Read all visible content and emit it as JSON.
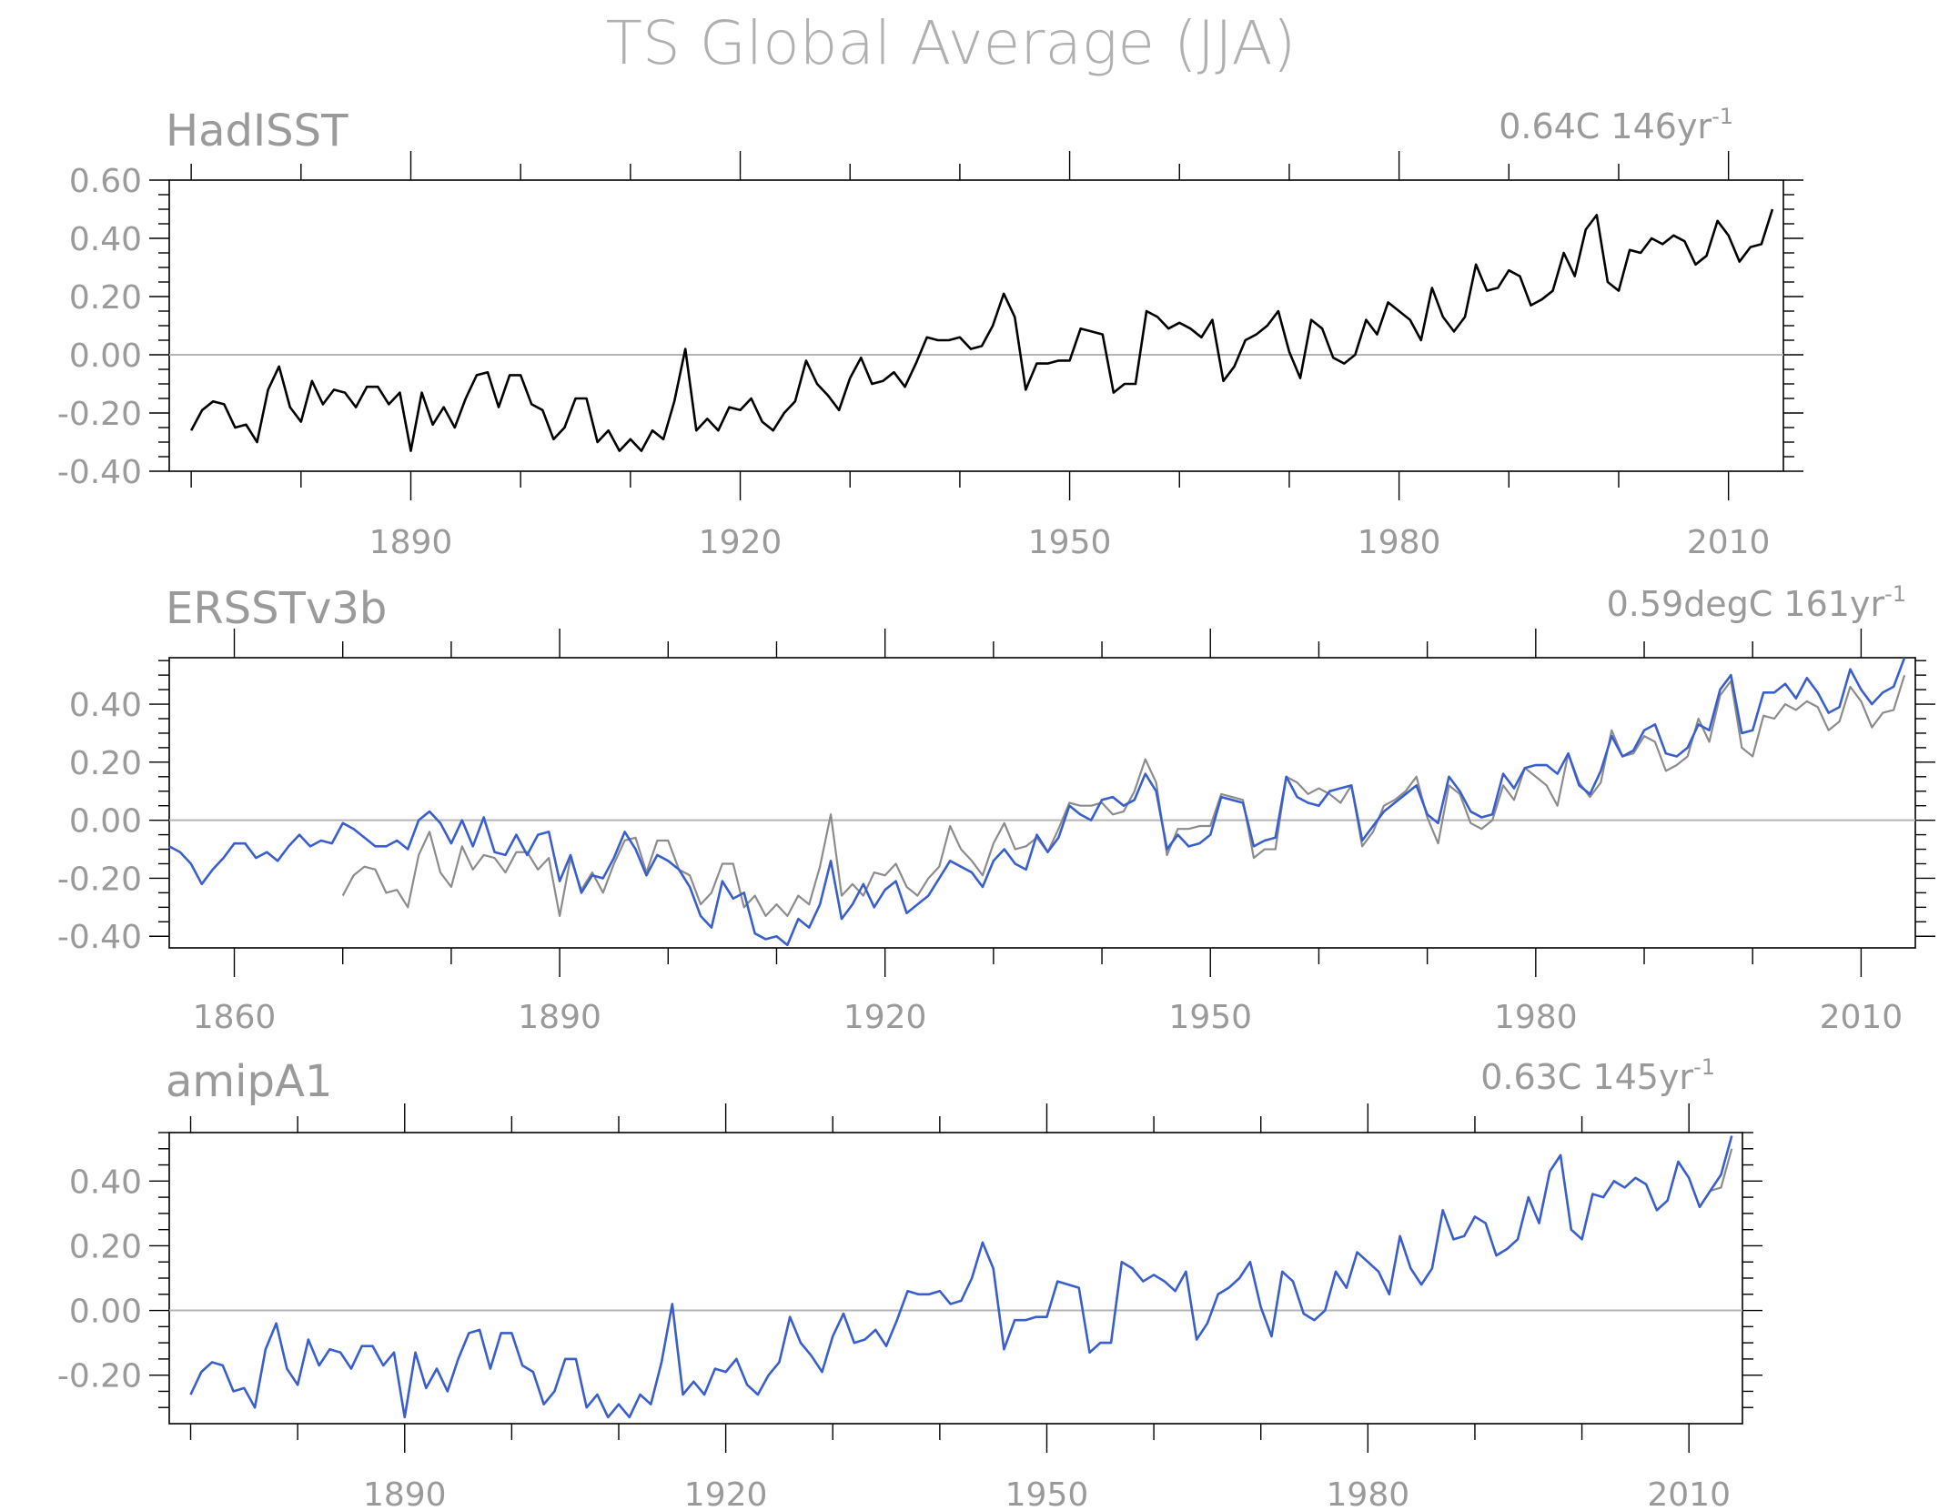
{
  "title": "TS Global Average (JJA)",
  "colors": {
    "observed": "#000000",
    "reference": "#8c8c8c",
    "model": "#3a5fcd",
    "zero_line": "#b4b4b4",
    "text": "#9a9a9a"
  },
  "chart_data": [
    {
      "type": "line",
      "name": "HadISST",
      "trend_label": "0.64C 146yr",
      "trend_exp": "-1",
      "xlim": [
        1868,
        2015
      ],
      "ylim": [
        -0.4,
        0.6
      ],
      "yticks": [
        -0.4,
        -0.2,
        0.0,
        0.2,
        0.4,
        0.6
      ],
      "ytick_labels": [
        "-0.40",
        "-0.20",
        "0.00",
        "0.20",
        "0.40",
        "0.60"
      ],
      "xticks": [
        1890,
        1920,
        1950,
        1980,
        2010
      ],
      "xtick_labels": [
        "1890",
        "1920",
        "1950",
        "1980",
        "2010"
      ],
      "x_start": 1870,
      "series": [
        {
          "role": "observed",
          "values": [
            -0.26,
            -0.19,
            -0.16,
            -0.17,
            -0.25,
            -0.24,
            -0.3,
            -0.12,
            -0.04,
            -0.18,
            -0.23,
            -0.09,
            -0.17,
            -0.12,
            -0.13,
            -0.18,
            -0.11,
            -0.11,
            -0.17,
            -0.13,
            -0.33,
            -0.13,
            -0.24,
            -0.18,
            -0.25,
            -0.15,
            -0.07,
            -0.06,
            -0.18,
            -0.07,
            -0.07,
            -0.17,
            -0.19,
            -0.29,
            -0.25,
            -0.15,
            -0.15,
            -0.3,
            -0.26,
            -0.33,
            -0.29,
            -0.33,
            -0.26,
            -0.29,
            -0.16,
            0.02,
            -0.26,
            -0.22,
            -0.26,
            -0.18,
            -0.19,
            -0.15,
            -0.23,
            -0.26,
            -0.2,
            -0.16,
            -0.02,
            -0.1,
            -0.14,
            -0.19,
            -0.08,
            -0.01,
            -0.1,
            -0.09,
            -0.06,
            -0.11,
            -0.03,
            0.06,
            0.05,
            0.05,
            0.06,
            0.02,
            0.03,
            0.1,
            0.21,
            0.13,
            -0.12,
            -0.03,
            -0.03,
            -0.02,
            -0.02,
            0.09,
            0.08,
            0.07,
            -0.13,
            -0.1,
            -0.1,
            0.15,
            0.13,
            0.09,
            0.11,
            0.09,
            0.06,
            0.12,
            -0.09,
            -0.04,
            0.05,
            0.07,
            0.1,
            0.15,
            0.01,
            -0.08,
            0.12,
            0.09,
            -0.01,
            -0.03,
            0.0,
            0.12,
            0.07,
            0.18,
            0.15,
            0.12,
            0.05,
            0.23,
            0.13,
            0.08,
            0.13,
            0.31,
            0.22,
            0.23,
            0.29,
            0.27,
            0.17,
            0.19,
            0.22,
            0.35,
            0.27,
            0.43,
            0.48,
            0.25,
            0.22,
            0.36,
            0.35,
            0.4,
            0.38,
            0.41,
            0.39,
            0.31,
            0.34,
            0.46,
            0.41,
            0.32,
            0.37,
            0.38,
            0.5
          ]
        }
      ]
    },
    {
      "type": "line",
      "name": "ERSSTv3b",
      "trend_label": "0.59degC 161yr",
      "trend_exp": "-1",
      "xlim": [
        1854,
        2015
      ],
      "ylim": [
        -0.44,
        0.56
      ],
      "yticks": [
        -0.4,
        -0.2,
        0.0,
        0.2,
        0.4
      ],
      "ytick_labels": [
        "-0.40",
        "-0.20",
        "0.00",
        "0.20",
        "0.40"
      ],
      "xticks": [
        1860,
        1890,
        1920,
        1950,
        1980,
        2010
      ],
      "xtick_labels": [
        "1860",
        "1890",
        "1920",
        "1950",
        "1980",
        "2010"
      ],
      "x_start": 1854,
      "ref_start": 1870,
      "series": [
        {
          "role": "model",
          "values": [
            -0.09,
            -0.11,
            -0.15,
            -0.22,
            -0.17,
            -0.13,
            -0.08,
            -0.08,
            -0.13,
            -0.11,
            -0.14,
            -0.09,
            -0.05,
            -0.09,
            -0.07,
            -0.08,
            -0.01,
            -0.03,
            -0.06,
            -0.09,
            -0.09,
            -0.07,
            -0.1,
            0.0,
            0.03,
            -0.01,
            -0.08,
            0.0,
            -0.09,
            0.01,
            -0.11,
            -0.12,
            -0.05,
            -0.12,
            -0.05,
            -0.04,
            -0.21,
            -0.12,
            -0.25,
            -0.19,
            -0.2,
            -0.13,
            -0.04,
            -0.1,
            -0.19,
            -0.12,
            -0.14,
            -0.17,
            -0.23,
            -0.33,
            -0.37,
            -0.21,
            -0.27,
            -0.25,
            -0.39,
            -0.41,
            -0.4,
            -0.43,
            -0.34,
            -0.37,
            -0.29,
            -0.14,
            -0.34,
            -0.29,
            -0.22,
            -0.3,
            -0.24,
            -0.21,
            -0.32,
            -0.29,
            -0.26,
            -0.2,
            -0.14,
            -0.16,
            -0.18,
            -0.23,
            -0.14,
            -0.1,
            -0.15,
            -0.17,
            -0.05,
            -0.11,
            -0.06,
            0.05,
            0.02,
            0.0,
            0.07,
            0.08,
            0.05,
            0.07,
            0.16,
            0.1,
            -0.1,
            -0.05,
            -0.09,
            -0.08,
            -0.05,
            0.08,
            0.07,
            0.06,
            -0.09,
            -0.07,
            -0.06,
            0.15,
            0.08,
            0.06,
            0.05,
            0.1,
            0.11,
            0.12,
            -0.07,
            -0.02,
            0.03,
            0.06,
            0.09,
            0.12,
            0.02,
            -0.01,
            0.15,
            0.1,
            0.03,
            0.01,
            0.02,
            0.16,
            0.11,
            0.18,
            0.19,
            0.19,
            0.16,
            0.23,
            0.12,
            0.09,
            0.17,
            0.29,
            0.22,
            0.24,
            0.31,
            0.33,
            0.23,
            0.22,
            0.25,
            0.33,
            0.31,
            0.45,
            0.5,
            0.3,
            0.31,
            0.44,
            0.44,
            0.47,
            0.42,
            0.49,
            0.44,
            0.37,
            0.39,
            0.52,
            0.45,
            0.4,
            0.44,
            0.46,
            0.56
          ]
        },
        {
          "role": "reference",
          "ref": 0
        }
      ]
    },
    {
      "type": "line",
      "name": "amipA1",
      "trend_label": "0.63C 145yr",
      "trend_exp": "-1",
      "xlim": [
        1868,
        2015
      ],
      "ylim": [
        -0.35,
        0.55
      ],
      "yticks": [
        -0.2,
        0.0,
        0.2,
        0.4
      ],
      "ytick_labels": [
        "-0.20",
        "0.00",
        "0.20",
        "0.40"
      ],
      "xticks": [
        1890,
        1920,
        1950,
        1980,
        2010
      ],
      "xtick_labels": [
        "1890",
        "1920",
        "1950",
        "1980",
        "2010"
      ],
      "x_start": 1870,
      "series": [
        {
          "role": "reference",
          "ref": 0
        },
        {
          "role": "model",
          "ref": 0,
          "tail": [
            0.42,
            0.54
          ]
        }
      ]
    }
  ]
}
